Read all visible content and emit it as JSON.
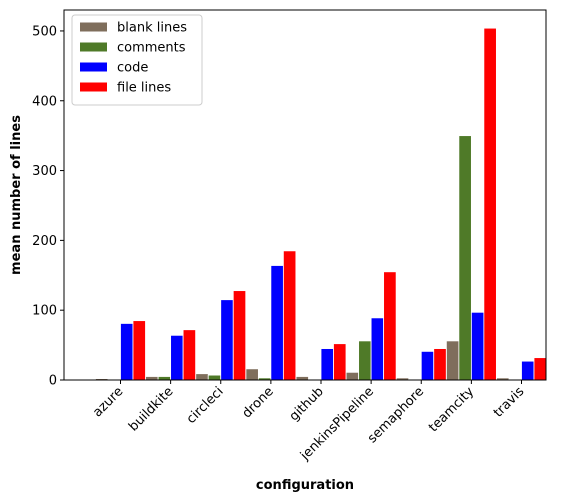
{
  "chart_data": {
    "type": "bar",
    "xlabel": "configuration",
    "ylabel": "mean number of lines",
    "ylim": [
      0,
      530
    ],
    "yticks": [
      0,
      100,
      200,
      300,
      400,
      500
    ],
    "grid": false,
    "legend_position": "top-left",
    "categories": [
      "azure",
      "buildkite",
      "circleci",
      "drone",
      "github",
      "jenkinsPipeline",
      "semaphore",
      "teamcity",
      "travis"
    ],
    "series": [
      {
        "name": "blank lines",
        "color": "#7f6e5c",
        "values": [
          2,
          5,
          9,
          16,
          5,
          11,
          3,
          56,
          3
        ]
      },
      {
        "name": "comments",
        "color": "#4f7a28",
        "values": [
          1,
          5,
          7,
          3,
          1,
          56,
          1,
          350,
          1
        ]
      },
      {
        "name": "code",
        "color": "#0000ff",
        "values": [
          81,
          64,
          115,
          164,
          45,
          89,
          41,
          97,
          27
        ]
      },
      {
        "name": "file lines",
        "color": "#ff0000",
        "values": [
          85,
          72,
          128,
          185,
          52,
          155,
          45,
          504,
          32
        ]
      }
    ]
  }
}
